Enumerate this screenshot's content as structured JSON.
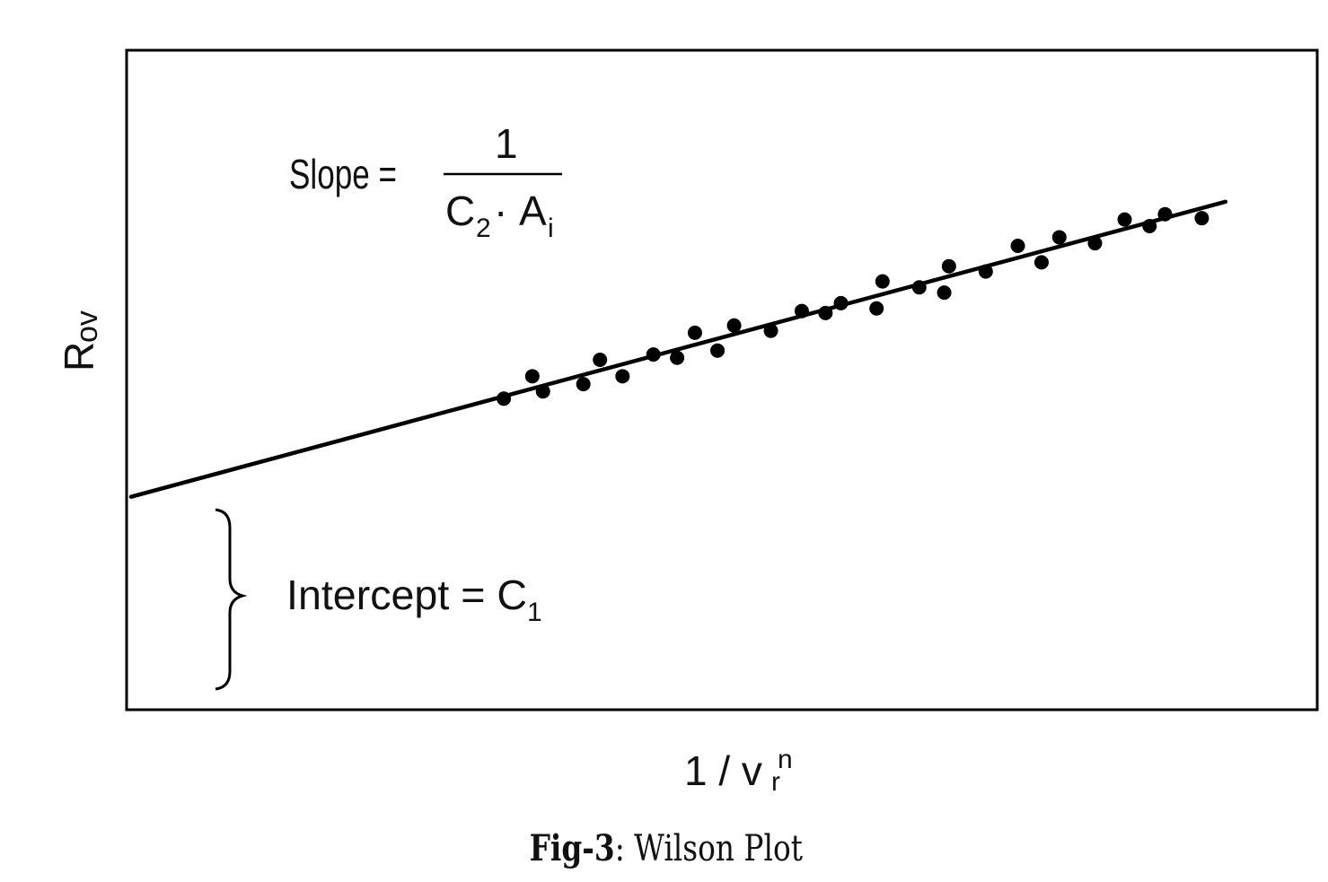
{
  "figure": {
    "caption_label": "Fig-3",
    "caption_sep": ":",
    "caption_text": " Wilson Plot"
  },
  "chart_data": {
    "type": "scatter",
    "title": "Wilson Plot",
    "xlabel": "1 / v_r^n",
    "ylabel": "R_ov",
    "x_axis_label": {
      "base": "1 / v",
      "sub": "r",
      "sup": "n"
    },
    "y_axis_label": {
      "base": "R",
      "sub": "ov"
    },
    "grid": false,
    "legend": null,
    "ticks": "none",
    "xlim": [
      0,
      1
    ],
    "ylim": [
      0,
      1
    ],
    "fit_line": {
      "description": "Linear least-squares fit extended to x = 0",
      "start": [
        0.0,
        0.322
      ],
      "end": [
        0.922,
        0.77
      ]
    },
    "annotations": {
      "slope": {
        "lhs": "Slope =",
        "numerator": "1",
        "denominator_c": "C",
        "denominator_c_sub": "2",
        "dot": " · ",
        "denominator_a": "A",
        "denominator_a_sub": "i"
      },
      "intercept": {
        "lhs": "Intercept = C",
        "sub": "1"
      }
    },
    "points": [
      {
        "x": 0.314,
        "y": 0.471
      },
      {
        "x": 0.338,
        "y": 0.505
      },
      {
        "x": 0.347,
        "y": 0.482
      },
      {
        "x": 0.381,
        "y": 0.493
      },
      {
        "x": 0.395,
        "y": 0.53
      },
      {
        "x": 0.414,
        "y": 0.505
      },
      {
        "x": 0.44,
        "y": 0.538
      },
      {
        "x": 0.46,
        "y": 0.533
      },
      {
        "x": 0.475,
        "y": 0.571
      },
      {
        "x": 0.494,
        "y": 0.544
      },
      {
        "x": 0.508,
        "y": 0.582
      },
      {
        "x": 0.539,
        "y": 0.574
      },
      {
        "x": 0.565,
        "y": 0.604
      },
      {
        "x": 0.585,
        "y": 0.601
      },
      {
        "x": 0.598,
        "y": 0.616
      },
      {
        "x": 0.628,
        "y": 0.608
      },
      {
        "x": 0.633,
        "y": 0.649
      },
      {
        "x": 0.664,
        "y": 0.64
      },
      {
        "x": 0.685,
        "y": 0.632
      },
      {
        "x": 0.689,
        "y": 0.672
      },
      {
        "x": 0.72,
        "y": 0.664
      },
      {
        "x": 0.747,
        "y": 0.703
      },
      {
        "x": 0.767,
        "y": 0.678
      },
      {
        "x": 0.782,
        "y": 0.716
      },
      {
        "x": 0.812,
        "y": 0.707
      },
      {
        "x": 0.837,
        "y": 0.743
      },
      {
        "x": 0.858,
        "y": 0.733
      },
      {
        "x": 0.871,
        "y": 0.751
      },
      {
        "x": 0.902,
        "y": 0.745
      }
    ]
  },
  "style": {
    "ink": "#000000",
    "background": "#ffffff"
  }
}
